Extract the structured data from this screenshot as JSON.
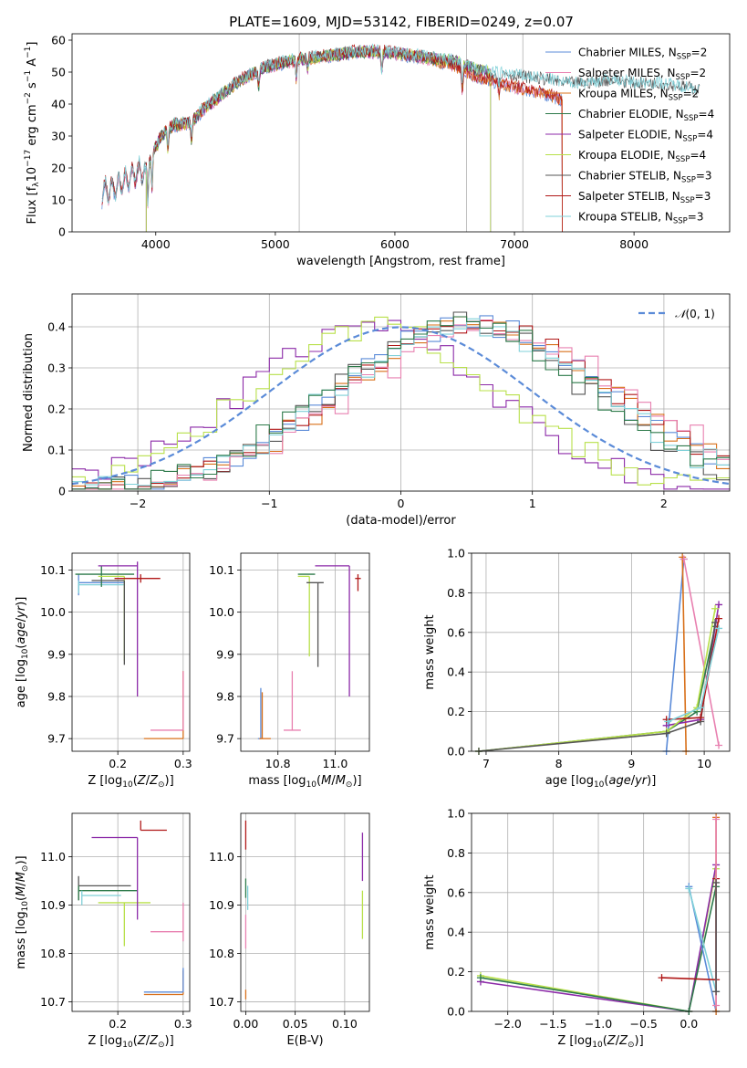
{
  "figure": {
    "title": "PLATE=1609, MJD=53142, FIBERID=0249, z=0.07"
  },
  "colors": {
    "Chabrier MILES": "#5b8bd8",
    "Salpeter MILES": "#e880b0",
    "Kroupa MILES": "#d8701a",
    "Chabrier ELODIE": "#2d7a4a",
    "Salpeter ELODIE": "#8c2aa8",
    "Kroupa ELODIE": "#b8e04a",
    "Chabrier STELIB": "#555555",
    "Salpeter STELIB": "#b01818",
    "Kroupa STELIB": "#7fd0d8"
  },
  "chart_data": [
    {
      "id": "spectrum",
      "type": "line",
      "title": "PLATE=1609, MJD=53142, FIBERID=0249, z=0.07",
      "xlabel": "wavelength [Angstrom, rest frame]",
      "ylabel": "Flux [f_λ10^-17 erg cm^-2 s^-1 A^-1]",
      "xlim": [
        3300,
        8800
      ],
      "ylim": [
        0,
        62
      ],
      "xticks": [
        4000,
        5000,
        6000,
        7000,
        8000
      ],
      "yticks": [
        0,
        10,
        20,
        30,
        40,
        50,
        60
      ],
      "grid": "vertical lines at 5200, 6600, 7070",
      "legend_location": "top-right",
      "series": [
        {
          "name": "Chabrier MILES, N_SSP=2"
        },
        {
          "name": "Salpeter MILES, N_SSP=2"
        },
        {
          "name": "Kroupa MILES, N_SSP=2"
        },
        {
          "name": "Chabrier ELODIE, N_SSP=4"
        },
        {
          "name": "Salpeter ELODIE, N_SSP=4"
        },
        {
          "name": "Kroupa ELODIE, N_SSP=4"
        },
        {
          "name": "Chabrier STELIB, N_SSP=3"
        },
        {
          "name": "Salpeter STELIB, N_SSP=3"
        },
        {
          "name": "Kroupa STELIB, N_SSP=3"
        }
      ],
      "continuum": {
        "x": [
          3550,
          3700,
          3800,
          3900,
          3950,
          4050,
          4150,
          4300,
          4400,
          4500,
          4700,
          4900,
          5100,
          5300,
          5500,
          5700,
          5900,
          6100,
          6300,
          6500,
          6700,
          6900,
          7100,
          7300,
          7400
        ],
        "y": [
          12,
          14,
          17,
          19,
          22,
          30,
          33,
          34,
          38,
          41,
          47,
          51,
          53,
          54,
          55,
          56,
          56,
          55,
          54,
          53,
          50,
          49,
          48,
          47,
          46
        ]
      },
      "continuum_long": {
        "x": [
          7400,
          7600,
          7800,
          8000,
          8200,
          8400,
          8550
        ],
        "y": [
          47,
          46,
          47,
          46,
          46,
          45,
          44
        ]
      }
    },
    {
      "id": "residuals",
      "type": "histogram",
      "xlabel": "(data-model)/error",
      "ylabel": "Normed distribution",
      "xlim": [
        -2.5,
        2.5
      ],
      "ylim": [
        0,
        0.48
      ],
      "xticks": [
        -2,
        -1,
        0,
        1,
        2
      ],
      "yticks": [
        0.0,
        0.1,
        0.2,
        0.3,
        0.4
      ],
      "legend": "N(0,1)",
      "legend_location": "top-right",
      "bin_width": 0.1,
      "histograms": [
        {
          "model": "Salpeter ELODIE",
          "center": -0.25,
          "sigma": 0.95,
          "amp": 0.4
        },
        {
          "model": "Kroupa ELODIE",
          "center": -0.2,
          "sigma": 0.95,
          "amp": 0.4
        },
        {
          "model": "Chabrier MILES",
          "center": 0.55,
          "sigma": 1.0,
          "amp": 0.41
        },
        {
          "model": "Kroupa MILES",
          "center": 0.6,
          "sigma": 1.0,
          "amp": 0.41
        },
        {
          "model": "Salpeter STELIB",
          "center": 0.6,
          "sigma": 1.05,
          "amp": 0.4
        },
        {
          "model": "Chabrier STELIB",
          "center": 0.45,
          "sigma": 0.95,
          "amp": 0.41
        },
        {
          "model": "Salpeter MILES",
          "center": 0.7,
          "sigma": 1.05,
          "amp": 0.39
        },
        {
          "model": "Kroupa STELIB",
          "center": 0.5,
          "sigma": 1.0,
          "amp": 0.4
        },
        {
          "model": "Chabrier ELODIE",
          "center": 0.45,
          "sigma": 1.0,
          "amp": 0.41
        }
      ]
    },
    {
      "id": "age-vs-z",
      "type": "errorbar",
      "xlabel": "Z [log10(Z/Z☉)]",
      "ylabel": "age [log10(age/yr)]",
      "xlim": [
        0.13,
        0.31
      ],
      "ylim": [
        9.67,
        10.14
      ],
      "xticks": [
        0.2,
        0.3
      ],
      "yticks": [
        9.7,
        9.8,
        9.9,
        10.0,
        10.1
      ],
      "points": [
        {
          "model": "Chabrier MILES",
          "x": 0.14,
          "xerr": [
            0.0,
            0.07
          ],
          "y": 10.07,
          "yerr": [
            0.03,
            0.02
          ]
        },
        {
          "model": "Kroupa STELIB",
          "x": 0.14,
          "xerr": [
            0.0,
            0.07
          ],
          "y": 10.065,
          "yerr": [
            0.02,
            0.01
          ]
        },
        {
          "model": "Chabrier ELODIE",
          "x": 0.175,
          "xerr": [
            0.04,
            0.05
          ],
          "y": 10.09,
          "yerr": [
            0.03,
            0.02
          ]
        },
        {
          "model": "Kroupa ELODIE",
          "x": 0.21,
          "xerr": [
            0.04,
            0.0
          ],
          "y": 10.085,
          "yerr": [
            0.2,
            0.0
          ]
        },
        {
          "model": "Chabrier STELIB",
          "x": 0.21,
          "xerr": [
            0.05,
            0.0
          ],
          "y": 10.075,
          "yerr": [
            0.2,
            0.0
          ]
        },
        {
          "model": "Salpeter ELODIE",
          "x": 0.23,
          "xerr": [
            0.06,
            0.0
          ],
          "y": 10.11,
          "yerr": [
            0.31,
            0.01
          ]
        },
        {
          "model": "Salpeter STELIB",
          "x": 0.235,
          "xerr": [
            0.04,
            0.03
          ],
          "y": 10.08,
          "yerr": [
            0.01,
            0.01
          ]
        },
        {
          "model": "Kroupa MILES",
          "x": 0.3,
          "xerr": [
            0.06,
            0.0
          ],
          "y": 9.7,
          "yerr": [
            0.0,
            0.16
          ]
        },
        {
          "model": "Salpeter MILES",
          "x": 0.3,
          "xerr": [
            0.05,
            0.0
          ],
          "y": 9.72,
          "yerr": [
            0.0,
            0.14
          ]
        }
      ]
    },
    {
      "id": "age-vs-mass",
      "type": "errorbar",
      "xlabel": "mass [log10(M/M☉)]",
      "ylabel": "",
      "xlim": [
        10.67,
        11.12
      ],
      "ylim": [
        9.67,
        10.14
      ],
      "xticks": [
        10.8,
        11.0
      ],
      "yticks": [
        9.7,
        9.8,
        9.9,
        10.0,
        10.1
      ],
      "points": [
        {
          "model": "Chabrier MILES",
          "x": 10.74,
          "xerr": [
            0.01,
            0.0
          ],
          "y": 9.7,
          "yerr": [
            0.0,
            0.12
          ]
        },
        {
          "model": "Kroupa MILES",
          "x": 10.745,
          "xerr": [
            0.01,
            0.03
          ],
          "y": 9.7,
          "yerr": [
            0.0,
            0.11
          ]
        },
        {
          "model": "Salpeter MILES",
          "x": 10.85,
          "xerr": [
            0.03,
            0.03
          ],
          "y": 9.72,
          "yerr": [
            0.0,
            0.14
          ]
        },
        {
          "model": "Chabrier ELODIE",
          "x": 10.93,
          "xerr": [
            0.06,
            0.0
          ],
          "y": 10.09,
          "yerr": [
            0.0,
            0.0
          ]
        },
        {
          "model": "Kroupa ELODIE",
          "x": 10.91,
          "xerr": [
            0.04,
            0.0
          ],
          "y": 10.085,
          "yerr": [
            0.19,
            0.0
          ]
        },
        {
          "model": "Chabrier STELIB",
          "x": 10.94,
          "xerr": [
            0.04,
            0.02
          ],
          "y": 10.07,
          "yerr": [
            0.2,
            0.0
          ]
        },
        {
          "model": "Salpeter ELODIE",
          "x": 11.05,
          "xerr": [
            0.12,
            0.0
          ],
          "y": 10.11,
          "yerr": [
            0.31,
            0.0
          ]
        },
        {
          "model": "Salpeter STELIB",
          "x": 11.08,
          "xerr": [
            0.01,
            0.01
          ],
          "y": 10.08,
          "yerr": [
            0.03,
            0.01
          ]
        }
      ]
    },
    {
      "id": "mass-weight-vs-age",
      "type": "line",
      "xlabel": "age [log10(age/yr)]",
      "ylabel": "mass weight",
      "xlim": [
        6.8,
        10.35
      ],
      "ylim": [
        0,
        1.0
      ],
      "xticks": [
        7,
        8,
        9,
        10
      ],
      "yticks": [
        0.0,
        0.2,
        0.4,
        0.6,
        0.8,
        1.0
      ],
      "series": [
        {
          "model": "Chabrier MILES",
          "x": [
            9.48,
            9.72
          ],
          "y": [
            0.0,
            0.97
          ]
        },
        {
          "model": "Kroupa MILES",
          "x": [
            9.75,
            9.7
          ],
          "y": [
            0.0,
            0.98
          ]
        },
        {
          "model": "Salpeter MILES",
          "x": [
            9.72,
            10.2
          ],
          "y": [
            0.97,
            0.03
          ]
        },
        {
          "model": "Chabrier ELODIE",
          "x": [
            6.9,
            9.48,
            9.9,
            10.15
          ],
          "y": [
            0.0,
            0.1,
            0.2,
            0.63
          ]
        },
        {
          "model": "Salpeter ELODIE",
          "x": [
            9.48,
            9.95,
            10.2
          ],
          "y": [
            0.13,
            0.16,
            0.74
          ]
        },
        {
          "model": "Kroupa ELODIE",
          "x": [
            6.9,
            9.48,
            9.9,
            10.15
          ],
          "y": [
            0.0,
            0.1,
            0.22,
            0.72
          ]
        },
        {
          "model": "Chabrier STELIB",
          "x": [
            6.9,
            9.48,
            9.95,
            10.15
          ],
          "y": [
            0.0,
            0.09,
            0.15,
            0.65
          ]
        },
        {
          "model": "Salpeter STELIB",
          "x": [
            9.48,
            9.95,
            10.2
          ],
          "y": [
            0.16,
            0.17,
            0.67
          ]
        },
        {
          "model": "Kroupa STELIB",
          "x": [
            9.5,
            9.95,
            10.2
          ],
          "y": [
            0.15,
            0.22,
            0.62
          ]
        }
      ]
    },
    {
      "id": "mass-vs-z",
      "type": "errorbar",
      "xlabel": "Z [log10(Z/Z☉)]",
      "ylabel": "mass [log10(M/M☉)]",
      "xlim": [
        0.13,
        0.31
      ],
      "ylim": [
        10.68,
        11.09
      ],
      "xticks": [
        0.2,
        0.3
      ],
      "yticks": [
        10.7,
        10.8,
        10.9,
        11.0
      ],
      "points": [
        {
          "model": "Chabrier STELIB",
          "x": 0.14,
          "xerr": [
            0.0,
            0.08
          ],
          "y": 10.94,
          "yerr": [
            0.03,
            0.02
          ]
        },
        {
          "model": "Chabrier ELODIE",
          "x": 0.14,
          "xerr": [
            0.0,
            0.09
          ],
          "y": 10.93,
          "yerr": [
            0.02,
            0.01
          ]
        },
        {
          "model": "Kroupa STELIB",
          "x": 0.145,
          "xerr": [
            0.0,
            0.06
          ],
          "y": 10.92,
          "yerr": [
            0.02,
            0.01
          ]
        },
        {
          "model": "Kroupa ELODIE",
          "x": 0.21,
          "xerr": [
            0.04,
            0.04
          ],
          "y": 10.905,
          "yerr": [
            0.09,
            0.0
          ]
        },
        {
          "model": "Salpeter ELODIE",
          "x": 0.23,
          "xerr": [
            0.07,
            0.0
          ],
          "y": 11.04,
          "yerr": [
            0.17,
            0.0
          ]
        },
        {
          "model": "Salpeter STELIB",
          "x": 0.235,
          "xerr": [
            0.0,
            0.04
          ],
          "y": 11.055,
          "yerr": [
            0.0,
            0.02
          ]
        },
        {
          "model": "Salpeter MILES",
          "x": 0.3,
          "xerr": [
            0.05,
            0.0
          ],
          "y": 10.845,
          "yerr": [
            0.02,
            0.06
          ]
        },
        {
          "model": "Kroupa MILES",
          "x": 0.3,
          "xerr": [
            0.06,
            0.0
          ],
          "y": 10.715,
          "yerr": [
            0.0,
            0.05
          ]
        },
        {
          "model": "Chabrier MILES",
          "x": 0.3,
          "xerr": [
            0.06,
            0.0
          ],
          "y": 10.72,
          "yerr": [
            0.0,
            0.05
          ]
        }
      ]
    },
    {
      "id": "mass-vs-ebv",
      "type": "errorbar",
      "xlabel": "E(B-V)",
      "ylabel": "",
      "xlim": [
        -0.005,
        0.125
      ],
      "ylim": [
        10.68,
        11.09
      ],
      "xticks": [
        0.0,
        0.05,
        0.1
      ],
      "yticks": [
        10.7,
        10.8,
        10.9,
        11.0
      ],
      "points": [
        {
          "model": "Salpeter STELIB",
          "x": 0.0,
          "y": 11.055,
          "yerr": [
            0.04,
            0.02
          ]
        },
        {
          "model": "Chabrier ELODIE",
          "x": 0.0,
          "y": 10.935,
          "yerr": [
            0.02,
            0.02
          ]
        },
        {
          "model": "Kroupa STELIB",
          "x": 0.002,
          "y": 10.92,
          "yerr": [
            0.03,
            0.02
          ]
        },
        {
          "model": "Salpeter MILES",
          "x": 0.0,
          "y": 10.84,
          "yerr": [
            0.03,
            0.04
          ]
        },
        {
          "model": "Kroupa MILES",
          "x": 0.0,
          "y": 10.715,
          "yerr": [
            0.01,
            0.01
          ]
        },
        {
          "model": "Salpeter ELODIE",
          "x": 0.118,
          "y": 11.0,
          "yerr": [
            0.05,
            0.05
          ]
        },
        {
          "model": "Kroupa ELODIE",
          "x": 0.118,
          "y": 10.88,
          "yerr": [
            0.05,
            0.05
          ]
        }
      ]
    },
    {
      "id": "mass-weight-vs-z",
      "type": "line",
      "xlabel": "Z [log10(Z/Z☉)]",
      "ylabel": "mass weight",
      "xlim": [
        -2.4,
        0.45
      ],
      "ylim": [
        0,
        1.0
      ],
      "xticks": [
        -2.0,
        -1.5,
        -1.0,
        -0.5,
        0.0
      ],
      "yticks": [
        0.0,
        0.2,
        0.4,
        0.6,
        0.8,
        1.0
      ],
      "series": [
        {
          "model": "Kroupa ELODIE",
          "x": [
            -2.3,
            0.0,
            0.3
          ],
          "y": [
            0.18,
            0.0,
            0.72
          ]
        },
        {
          "model": "Salpeter ELODIE",
          "x": [
            -2.3,
            0.0,
            0.3
          ],
          "y": [
            0.15,
            0.0,
            0.74
          ]
        },
        {
          "model": "Chabrier ELODIE",
          "x": [
            -2.3,
            0.0,
            0.3
          ],
          "y": [
            0.17,
            0.0,
            0.63
          ]
        },
        {
          "model": "Chabrier MILES",
          "x": [
            0.0,
            0.3
          ],
          "y": [
            0.63,
            0.0
          ]
        },
        {
          "model": "Kroupa STELIB",
          "x": [
            0.0,
            0.3
          ],
          "y": [
            0.62,
            0.1
          ]
        },
        {
          "model": "Salpeter STELIB",
          "x": [
            -0.3,
            0.3,
            0.3
          ],
          "y": [
            0.17,
            0.16,
            0.67
          ]
        },
        {
          "model": "Kroupa MILES",
          "x": [
            0.3,
            0.3
          ],
          "y": [
            0.0,
            0.98
          ]
        },
        {
          "model": "Salpeter MILES",
          "x": [
            0.3,
            0.3
          ],
          "y": [
            0.03,
            0.97
          ]
        },
        {
          "model": "Chabrier STELIB",
          "x": [
            0.3,
            0.3
          ],
          "y": [
            0.1,
            0.65
          ]
        }
      ]
    }
  ]
}
